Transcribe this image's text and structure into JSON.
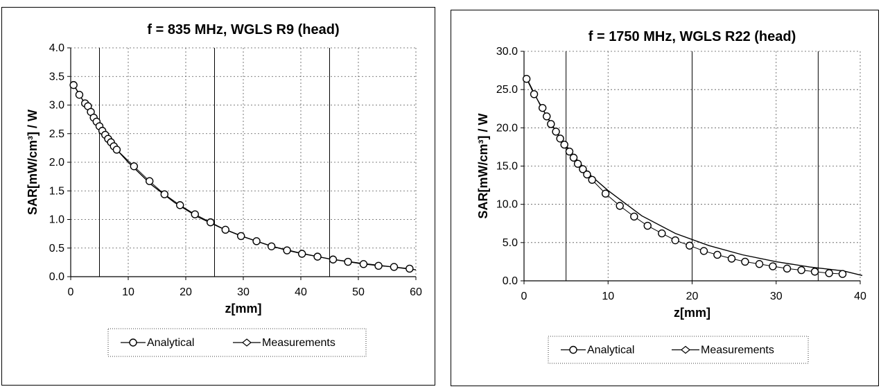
{
  "chart_data": [
    {
      "type": "line",
      "title": "f = 835 MHz, WGLS R9 (head)",
      "xlabel": "z[mm]",
      "ylabel": "SAR[mW/cm³] / W",
      "xlim": [
        0,
        60
      ],
      "ylim": [
        0,
        4
      ],
      "x_ticks": [
        "0",
        "10",
        "20",
        "30",
        "40",
        "50",
        "60"
      ],
      "y_ticks": [
        "0.0",
        "0.5",
        "1.0",
        "1.5",
        "2.0",
        "2.5",
        "3.0",
        "3.5",
        "4.0"
      ],
      "grid": "dotted",
      "vertical_markers": [
        5,
        25,
        45
      ],
      "legend_position": "bottom",
      "series": [
        {
          "name": "Analytical",
          "marker": "circle",
          "x": [
            0.5,
            1.5,
            2.5,
            3.0,
            3.5,
            4.0,
            4.5,
            5.0,
            5.5,
            6.0,
            6.5,
            7.0,
            7.5,
            8.0,
            11.0,
            13.7,
            16.3,
            19.0,
            21.6,
            24.3,
            26.9,
            29.6,
            32.3,
            34.9,
            37.6,
            40.2,
            42.9,
            45.6,
            48.2,
            50.9,
            53.5,
            56.2,
            58.9
          ],
          "y": [
            3.35,
            3.18,
            3.03,
            2.98,
            2.88,
            2.78,
            2.71,
            2.63,
            2.55,
            2.48,
            2.41,
            2.35,
            2.28,
            2.22,
            1.93,
            1.67,
            1.44,
            1.25,
            1.09,
            0.95,
            0.82,
            0.71,
            0.62,
            0.53,
            0.46,
            0.4,
            0.35,
            0.3,
            0.26,
            0.22,
            0.19,
            0.17,
            0.14
          ]
        },
        {
          "name": "Measurements",
          "marker": "diamond",
          "x": [
            0.5,
            2,
            4,
            6,
            8,
            10,
            14,
            18,
            22,
            26,
            30,
            35,
            40,
            45,
            50,
            55,
            60
          ],
          "y": [
            3.36,
            3.1,
            2.78,
            2.49,
            2.22,
            2.0,
            1.61,
            1.3,
            1.05,
            0.86,
            0.7,
            0.53,
            0.41,
            0.31,
            0.24,
            0.18,
            0.12
          ]
        }
      ],
      "legend": [
        "Analytical",
        "Measurements"
      ]
    },
    {
      "type": "line",
      "title": "f = 1750 MHz, WGLS R22 (head)",
      "xlabel": "z[mm]",
      "ylabel": "SAR[mW/cm³] / W",
      "xlim": [
        0,
        40
      ],
      "ylim": [
        0,
        30
      ],
      "x_ticks": [
        "0",
        "10",
        "20",
        "30",
        "40"
      ],
      "y_ticks": [
        "0.0",
        "5.0",
        "10.0",
        "15.0",
        "20.0",
        "25.0",
        "30.0"
      ],
      "grid": "dotted",
      "vertical_markers": [
        5,
        20,
        35
      ],
      "legend_position": "bottom",
      "series": [
        {
          "name": "Analytical",
          "marker": "circle",
          "x": [
            0.3,
            1.2,
            2.2,
            2.7,
            3.2,
            3.8,
            4.3,
            4.8,
            5.4,
            5.9,
            6.4,
            7.0,
            7.5,
            8.1,
            9.7,
            11.4,
            13.1,
            14.7,
            16.4,
            18.0,
            19.7,
            21.4,
            23.0,
            24.7,
            26.3,
            28.0,
            29.6,
            31.3,
            33.0,
            34.6,
            36.3,
            37.9
          ],
          "y": [
            26.4,
            24.4,
            22.6,
            21.5,
            20.5,
            19.5,
            18.6,
            17.8,
            16.9,
            16.1,
            15.3,
            14.6,
            13.9,
            13.2,
            11.4,
            9.8,
            8.4,
            7.2,
            6.2,
            5.3,
            4.6,
            3.9,
            3.4,
            2.9,
            2.5,
            2.2,
            1.9,
            1.6,
            1.4,
            1.2,
            1.0,
            0.9
          ]
        },
        {
          "name": "Measurements",
          "marker": "diamond",
          "x": [
            0.3,
            2,
            4,
            6,
            8,
            10,
            14,
            18,
            22,
            26,
            30,
            34,
            38,
            40.5
          ],
          "y": [
            26.5,
            22.8,
            19.2,
            16.2,
            13.7,
            11.8,
            8.5,
            6.2,
            4.6,
            3.4,
            2.5,
            1.8,
            1.3,
            0.7
          ]
        }
      ],
      "legend": [
        "Analytical",
        "Measurements"
      ]
    }
  ]
}
